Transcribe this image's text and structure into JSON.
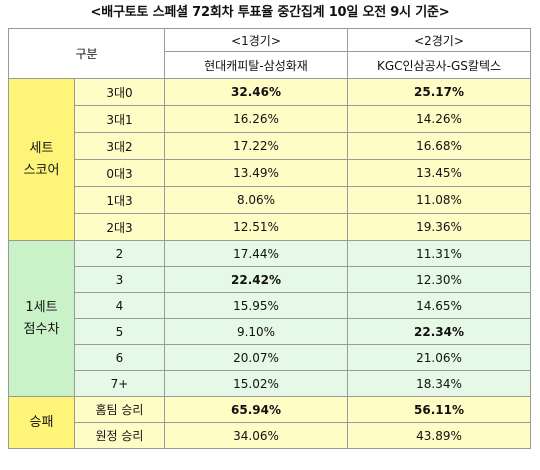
{
  "title": "<배구토토 스페셜 72회차 투표율 중간집계 10일 오전 9시 기준>",
  "header": {
    "category": "구분",
    "game1": "<1경기>",
    "game2": "<2경기>",
    "match1": "현대캐피탈-삼성화재",
    "match2": "KGC인삼공사-GS칼텍스"
  },
  "groups": {
    "set_score": {
      "line1": "세트",
      "line2": "스코어"
    },
    "point_diff": {
      "line1": "1세트",
      "line2": "점수차"
    },
    "win_loss": {
      "label": "승패"
    }
  },
  "rows": {
    "set_score": [
      {
        "label": "3대0",
        "g1": "32.46%",
        "g2": "25.17%"
      },
      {
        "label": "3대1",
        "g1": "16.26%",
        "g2": "14.26%"
      },
      {
        "label": "3대2",
        "g1": "17.22%",
        "g2": "16.68%"
      },
      {
        "label": "0대3",
        "g1": "13.49%",
        "g2": "13.45%"
      },
      {
        "label": "1대3",
        "g1": "8.06%",
        "g2": "11.08%"
      },
      {
        "label": "2대3",
        "g1": "12.51%",
        "g2": "19.36%"
      }
    ],
    "point_diff": [
      {
        "label": "2",
        "g1": "17.44%",
        "g2": "11.31%"
      },
      {
        "label": "3",
        "g1": "22.42%",
        "g2": "12.30%"
      },
      {
        "label": "4",
        "g1": "15.95%",
        "g2": "14.65%"
      },
      {
        "label": "5",
        "g1": "9.10%",
        "g2": "22.34%"
      },
      {
        "label": "6",
        "g1": "20.07%",
        "g2": "21.06%"
      },
      {
        "label": "7+",
        "g1": "15.02%",
        "g2": "18.34%"
      }
    ],
    "win_loss": [
      {
        "label": "홈팀 승리",
        "g1": "65.94%",
        "g2": "56.11%"
      },
      {
        "label": "원정 승리",
        "g1": "34.06%",
        "g2": "43.89%"
      }
    ]
  }
}
